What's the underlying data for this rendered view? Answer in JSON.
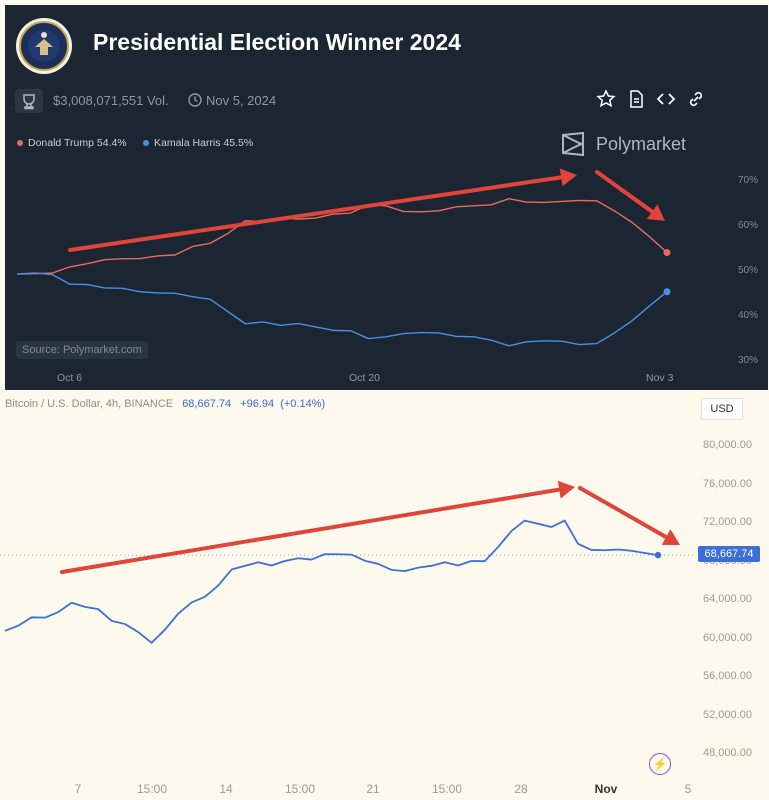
{
  "polymarket": {
    "title": "Presidential Election Winner 2024",
    "volume": "$3,008,071,551 Vol.",
    "date": "Nov 5, 2024",
    "brand": "Polymarket",
    "source": "Source: Polymarket.com",
    "legend": [
      {
        "label": "Donald Trump 54.4%",
        "color": "#e86a63"
      },
      {
        "label": "Kamala Harris 45.5%",
        "color": "#4a8fe0"
      }
    ],
    "seal_icon": "presidential-seal-icon",
    "action_icons": [
      "star-icon",
      "document-icon",
      "code-icon",
      "link-icon"
    ]
  },
  "bitcoin": {
    "symbol": "Bitcoin / U.S. Dollar, 4h, BINANCE",
    "price": "68,667.74",
    "change": "+96.94",
    "change_pct": "(+0.14%)",
    "currency": "USD",
    "price_label": "68,667.74"
  },
  "chart_data": [
    {
      "type": "line",
      "title": "Presidential Election Winner 2024",
      "xlabel": "",
      "ylabel": "",
      "x_ticks": [
        "Oct 6",
        "Oct 20",
        "Nov 3"
      ],
      "y_ticks": [
        "70%",
        "60%",
        "50%",
        "40%",
        "30%"
      ],
      "ylim": [
        30,
        72
      ],
      "grid": false,
      "legend_position": "top-left",
      "series": [
        {
          "name": "Donald Trump",
          "color": "#e86a63",
          "values": [
            49.5,
            49.6,
            50.0,
            51.0,
            52.0,
            52.5,
            53.0,
            53.3,
            53.5,
            54.0,
            55.5,
            56.5,
            59.0,
            61.5,
            61.5,
            62.0,
            62.0,
            62.5,
            63.0,
            63.5,
            65.0,
            65.0,
            64.0,
            63.5,
            64.0,
            64.5,
            65.0,
            65.5,
            66.5,
            66.0,
            65.5,
            66.0,
            66.5,
            66.0,
            64.0,
            61.0,
            58.0,
            54.4
          ]
        },
        {
          "name": "Kamala Harris",
          "color": "#4a8fe0",
          "values": [
            49.5,
            49.5,
            49.4,
            47.5,
            47.0,
            46.5,
            46.0,
            45.5,
            45.5,
            45.0,
            44.5,
            43.5,
            41.0,
            38.5,
            38.5,
            38.0,
            38.0,
            37.5,
            37.0,
            36.5,
            35.0,
            35.0,
            36.0,
            36.5,
            36.0,
            35.5,
            35.0,
            34.5,
            33.5,
            34.0,
            34.5,
            34.0,
            33.5,
            34.0,
            36.0,
            39.0,
            42.0,
            45.5
          ]
        }
      ],
      "annotations": [
        "arrow up-trend",
        "arrow down-trend"
      ]
    },
    {
      "type": "line",
      "title": "Bitcoin / U.S. Dollar, 4h, BINANCE",
      "x_ticks": [
        "7",
        "15:00",
        "14",
        "15:00",
        "21",
        "15:00",
        "28",
        "Nov",
        "5"
      ],
      "y_ticks": [
        "80,000.00",
        "76,000.00",
        "72,000.00",
        "68,000.00",
        "64,000.00",
        "60,000.00",
        "56,000.00",
        "52,000.00",
        "48,000.00"
      ],
      "ylim": [
        46000,
        82000
      ],
      "series": [
        {
          "name": "",
          "color": "#3d6fd8",
          "values": [
            60800,
            61500,
            62200,
            62000,
            63000,
            63800,
            63200,
            62800,
            62000,
            61500,
            60500,
            59800,
            61000,
            62500,
            63500,
            64500,
            65500,
            67000,
            67800,
            68000,
            67500,
            67800,
            68500,
            68200,
            68600,
            69000,
            68800,
            68000,
            67500,
            67300,
            67000,
            67200,
            67800,
            68000,
            67500,
            67800,
            68200,
            69500,
            71000,
            72500,
            72000,
            71500,
            72000,
            70000,
            69200,
            69000,
            69500,
            69200,
            68800,
            68667
          ]
        }
      ],
      "annotations": [
        "arrow up-trend",
        "arrow down-trend"
      ]
    }
  ]
}
